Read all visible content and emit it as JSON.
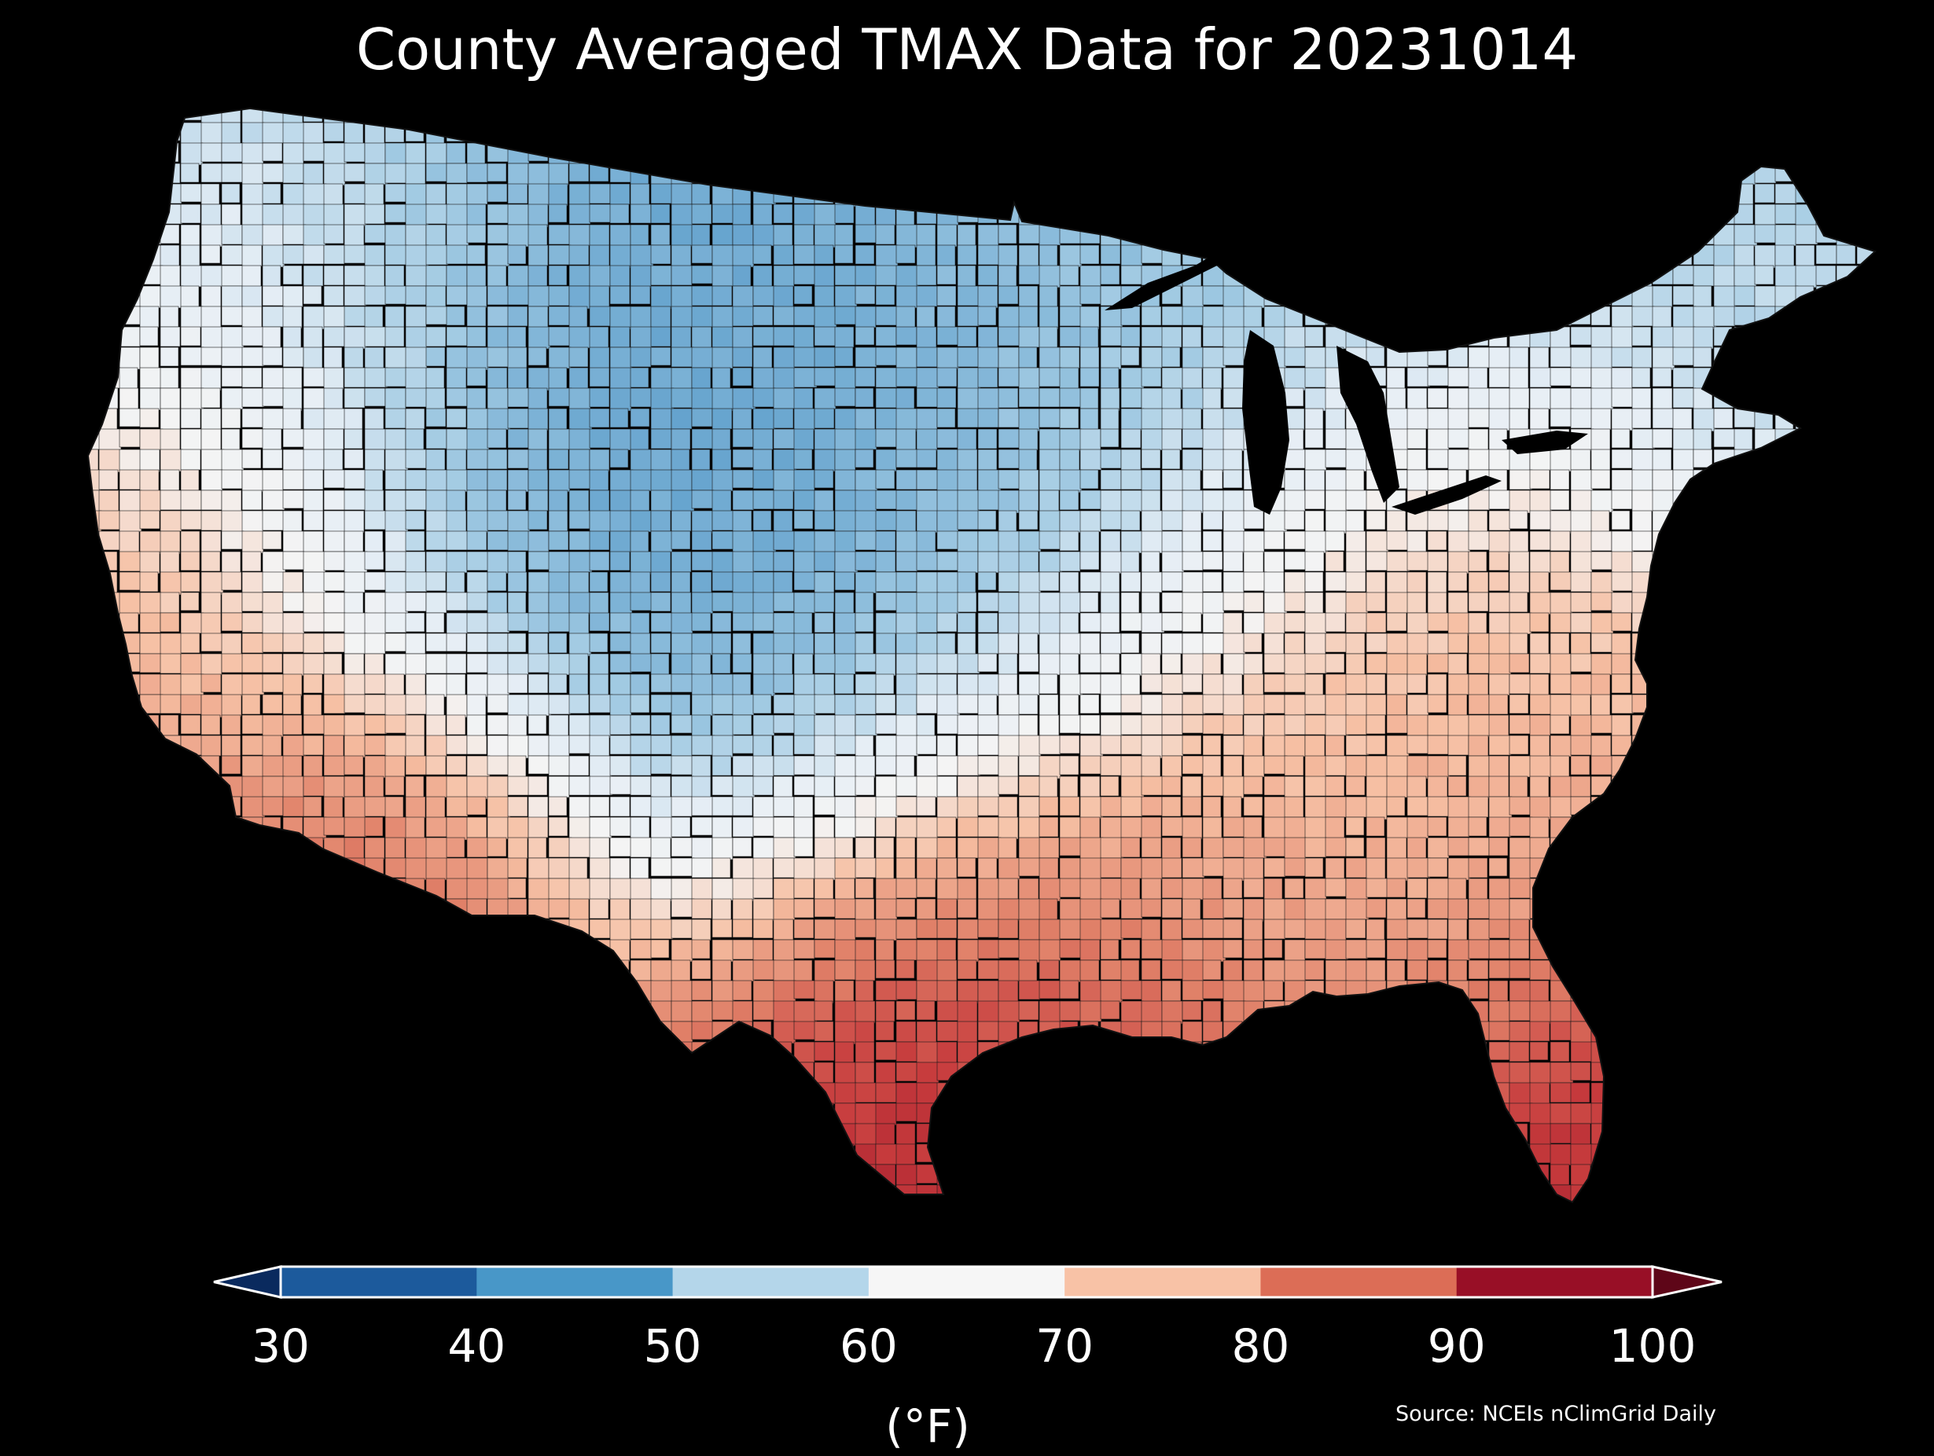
{
  "title": "County Averaged TMAX Data for 20231014",
  "colorbar": {
    "ticks": [
      "30",
      "40",
      "50",
      "60",
      "70",
      "80",
      "90",
      "100"
    ],
    "units": "(°F)",
    "colors": {
      "under": "#0a2a5e",
      "b30_40": "#1c5a9c",
      "b40_50": "#4897c8",
      "b50_60": "#b4d6ea",
      "b60_70": "#f6f6f6",
      "b70_80": "#f8c2a6",
      "b80_90": "#dc6d56",
      "b90_100": "#980f26",
      "over": "#5e0618"
    }
  },
  "source": "Source: NCEIs nClimGrid Daily",
  "map_colors": {
    "cold_core": "#2f6eae",
    "cold": "#5a9cca",
    "cool": "#a3cbe3",
    "mild": "#e6eef5",
    "neutral": "#f4f4f4",
    "warm": "#f6c0a4",
    "hot": "#e08068",
    "very_hot": "#c63a3c",
    "extreme": "#a01a2c",
    "background": "#000000"
  }
}
